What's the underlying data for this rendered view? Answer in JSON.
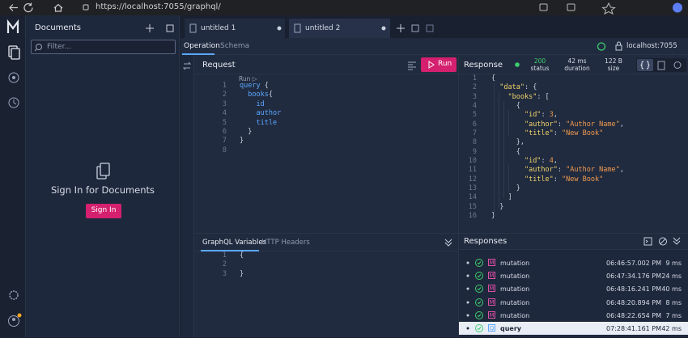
{
  "browser": {
    "url": "https://localhost:7055/graphql/"
  },
  "documents": {
    "title": "Documents",
    "filter_placeholder": "Filter...",
    "message": "Sign In for Documents",
    "button": "Sign In"
  },
  "tabs": [
    {
      "label": "untitled 1"
    },
    {
      "label": "untitled 2"
    }
  ],
  "subtabs": [
    "Operation",
    "Schema"
  ],
  "endpoint": "localhost:7055",
  "request": {
    "title": "Request",
    "run": "Run",
    "code_lens": "Run ▷",
    "lines": [
      {
        "number": 1,
        "code": "query {"
      },
      {
        "number": 2,
        "code": "  books{"
      },
      {
        "number": 3,
        "code": "    id"
      },
      {
        "number": 4,
        "code": "    author"
      },
      {
        "number": 5,
        "code": "    title"
      },
      {
        "number": 6,
        "code": "  }"
      },
      {
        "number": 7,
        "code": "}"
      },
      {
        "number": 8
      }
    ]
  },
  "variables": {
    "tabs": [
      "GraphQL Variables",
      "HTTP Headers"
    ],
    "lines": [
      {
        "number": 1,
        "code": "{"
      },
      {
        "number": 2
      },
      {
        "number": 3,
        "code": "}"
      }
    ]
  },
  "response": {
    "title": "Response",
    "status": {
      "value": "200",
      "label": "status"
    },
    "duration": {
      "value": "42 ms",
      "label": "duration"
    },
    "size": {
      "value": "122 B",
      "label": "size"
    },
    "lines": [
      {
        "number": 1,
        "code": "{"
      },
      {
        "number": 2,
        "code": "  \"data\": {"
      },
      {
        "number": 3,
        "code": "    \"books\": ["
      },
      {
        "number": 4,
        "code": "      {"
      },
      {
        "number": 5,
        "code": "        \"id\": 3,"
      },
      {
        "number": 6,
        "code": "        \"author\": \"Author Name\","
      },
      {
        "number": 7,
        "code": "        \"title\": \"New Book\""
      },
      {
        "number": 8,
        "code": "      },"
      },
      {
        "number": 9,
        "code": "      {"
      },
      {
        "number": 10,
        "code": "        \"id\": 4,"
      },
      {
        "number": 11,
        "code": "        \"author\": \"Author Name\","
      },
      {
        "number": 12,
        "code": "        \"title\": \"New Book\""
      },
      {
        "number": 13,
        "code": "      }"
      },
      {
        "number": 14,
        "code": "    ]"
      },
      {
        "number": 15,
        "code": "  }"
      },
      {
        "number": 16,
        "code": "}"
      }
    ]
  },
  "responses": {
    "title": "Responses",
    "rows": [
      {
        "badge": "M",
        "operation": "mutation",
        "time": "06:46:57.002 PM",
        "duration": "9 ms"
      },
      {
        "badge": "M",
        "operation": "mutation",
        "time": "06:47:34.176 PM",
        "duration": "24 ms"
      },
      {
        "badge": "M",
        "operation": "mutation",
        "time": "06:48:16.241 PM",
        "duration": "40 ms"
      },
      {
        "badge": "M",
        "operation": "mutation",
        "time": "06:48:20.894 PM",
        "duration": "8 ms"
      },
      {
        "badge": "M",
        "operation": "mutation",
        "time": "06:48:22.654 PM",
        "duration": "7 ms"
      },
      {
        "badge": "Q",
        "operation": "query",
        "time": "07:28:41.161 PM",
        "duration": "42 ms"
      }
    ]
  }
}
